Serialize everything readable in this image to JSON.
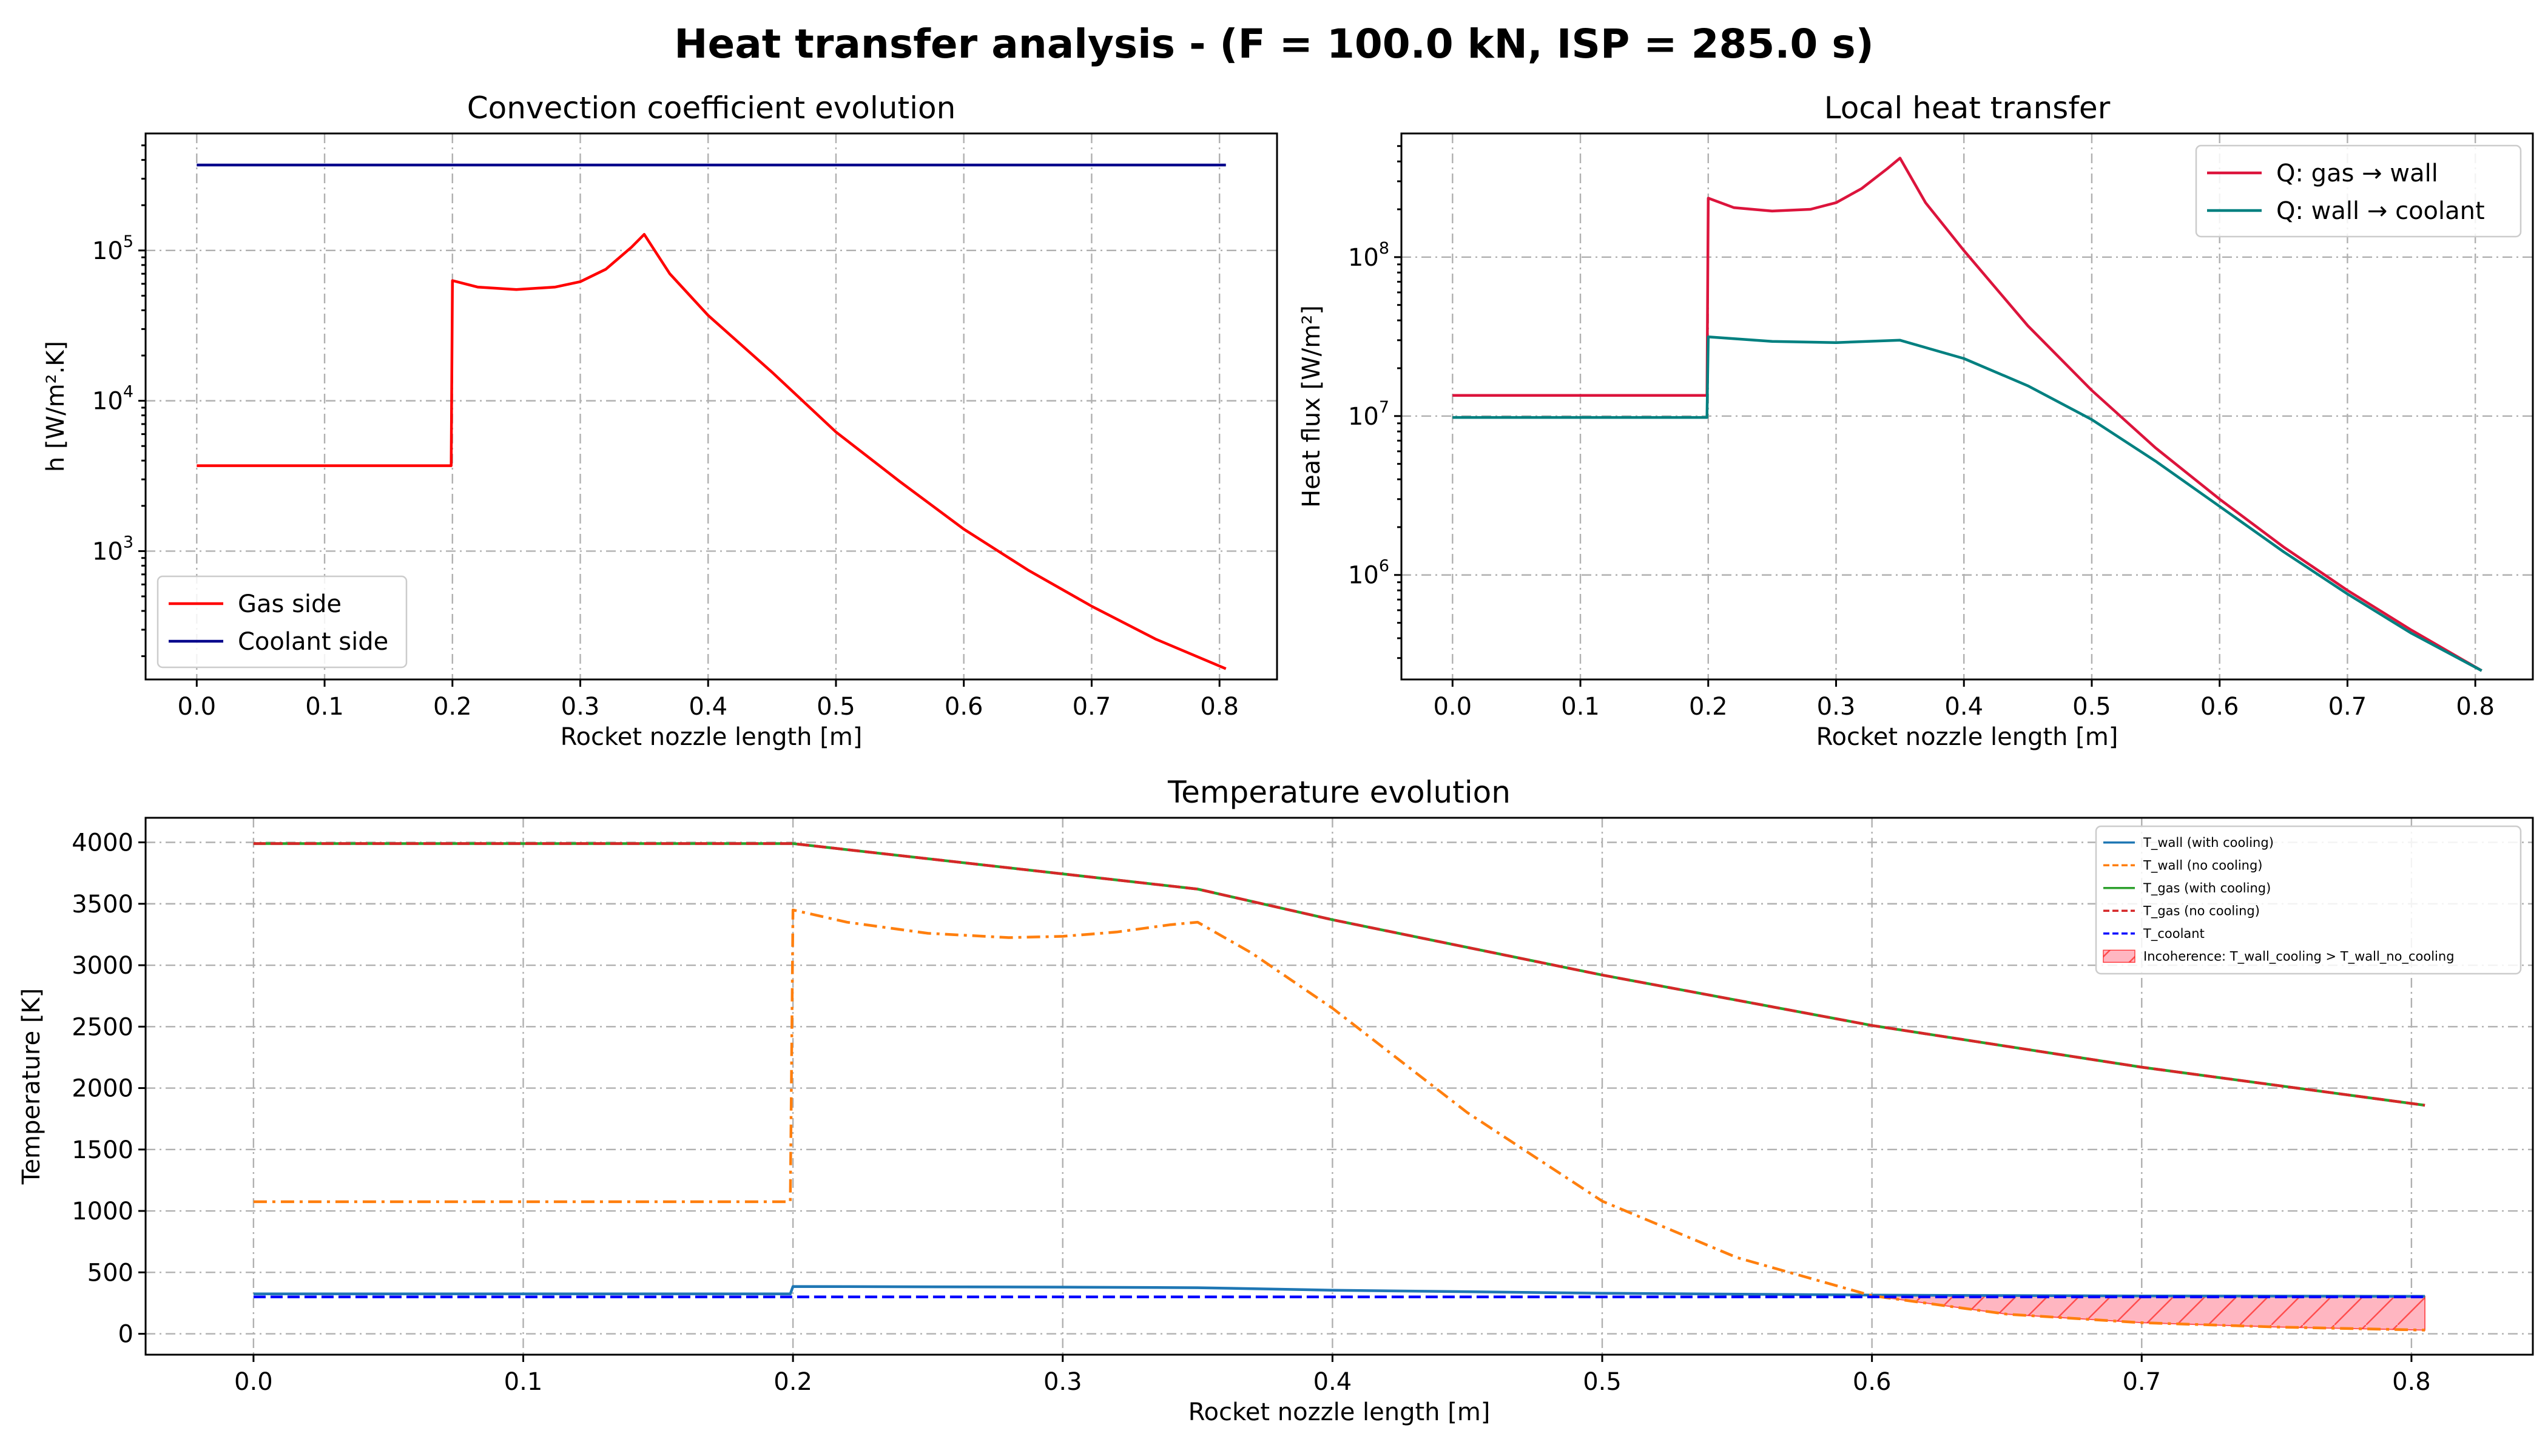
{
  "figure": {
    "suptitle": "Heat transfer analysis - (F = 100.0 kN, ISP = 285.0 s)"
  },
  "chart_data": [
    {
      "id": "convection",
      "type": "line",
      "title": "Convection coefficient evolution",
      "xlabel": "Rocket nozzle length [m]",
      "ylabel": "h [W/m².K]",
      "yscale": "log",
      "xlim": [
        -0.04,
        0.845
      ],
      "ylim": [
        140,
        600000
      ],
      "xticks": [
        0.0,
        0.1,
        0.2,
        0.3,
        0.4,
        0.5,
        0.6,
        0.7,
        0.8
      ],
      "xtick_labels": [
        "0.0",
        "0.1",
        "0.2",
        "0.3",
        "0.4",
        "0.5",
        "0.6",
        "0.7",
        "0.8"
      ],
      "yticks": [
        1000,
        10000,
        100000
      ],
      "ytick_labels": [
        [
          "10",
          "3"
        ],
        [
          "10",
          "4"
        ],
        [
          "10",
          "5"
        ]
      ],
      "grid": true,
      "legend": "lower-left",
      "series": [
        {
          "name": "Gas side",
          "color": "#ff0000",
          "dash": "solid",
          "x": [
            0.0,
            0.199,
            0.2,
            0.22,
            0.25,
            0.28,
            0.3,
            0.32,
            0.34,
            0.35,
            0.37,
            0.4,
            0.45,
            0.5,
            0.55,
            0.6,
            0.65,
            0.7,
            0.75,
            0.805
          ],
          "y": [
            3700,
            3700,
            63000,
            57000,
            55000,
            57000,
            62000,
            75000,
            105000,
            128000,
            70000,
            37000,
            15500,
            6200,
            2900,
            1400,
            750,
            430,
            260,
            165
          ]
        },
        {
          "name": "Coolant side",
          "color": "#00008b",
          "dash": "solid",
          "x": [
            0.0,
            0.805
          ],
          "y": [
            370000,
            370000
          ]
        }
      ]
    },
    {
      "id": "heat-flux",
      "type": "line",
      "title": "Local heat transfer",
      "xlabel": "Rocket nozzle length [m]",
      "ylabel": "Heat flux [W/m²]",
      "yscale": "log",
      "xlim": [
        -0.04,
        0.845
      ],
      "ylim": [
        220000,
        600000000
      ],
      "xticks": [
        0.0,
        0.1,
        0.2,
        0.3,
        0.4,
        0.5,
        0.6,
        0.7,
        0.8
      ],
      "xtick_labels": [
        "0.0",
        "0.1",
        "0.2",
        "0.3",
        "0.4",
        "0.5",
        "0.6",
        "0.7",
        "0.8"
      ],
      "yticks": [
        1000000,
        10000000,
        100000000
      ],
      "ytick_labels": [
        [
          "10",
          "6"
        ],
        [
          "10",
          "7"
        ],
        [
          "10",
          "8"
        ]
      ],
      "grid": true,
      "legend": "top-right",
      "series": [
        {
          "name": "Q: gas → wall",
          "color": "#dc143c",
          "dash": "solid",
          "x": [
            0.0,
            0.199,
            0.2,
            0.22,
            0.25,
            0.28,
            0.3,
            0.32,
            0.34,
            0.35,
            0.37,
            0.4,
            0.45,
            0.5,
            0.55,
            0.6,
            0.65,
            0.7,
            0.75,
            0.805
          ],
          "y": [
            13500000,
            13500000,
            235000000,
            205000000,
            195000000,
            200000000,
            220000000,
            270000000,
            360000000,
            420000000,
            220000000,
            110000000,
            37000000,
            14500000,
            6300000,
            3000000,
            1500000,
            800000,
            450000,
            250000
          ]
        },
        {
          "name": "Q: wall → coolant",
          "color": "#008080",
          "dash": "solid",
          "x": [
            0.0,
            0.199,
            0.2,
            0.25,
            0.3,
            0.35,
            0.4,
            0.45,
            0.5,
            0.55,
            0.6,
            0.65,
            0.7,
            0.75,
            0.805
          ],
          "y": [
            9800000,
            9800000,
            31500000,
            29500000,
            29000000,
            30000000,
            23000000,
            15500000,
            9500000,
            5200000,
            2700000,
            1400000,
            760000,
            430000,
            250000
          ]
        }
      ]
    },
    {
      "id": "temperature",
      "type": "line",
      "title": "Temperature evolution",
      "xlabel": "Rocket nozzle length [m]",
      "ylabel": "Temperature [K]",
      "yscale": "linear",
      "xlim": [
        -0.04,
        0.845
      ],
      "ylim": [
        -170,
        4200
      ],
      "xticks": [
        0.0,
        0.1,
        0.2,
        0.3,
        0.4,
        0.5,
        0.6,
        0.7,
        0.8
      ],
      "xtick_labels": [
        "0.0",
        "0.1",
        "0.2",
        "0.3",
        "0.4",
        "0.5",
        "0.6",
        "0.7",
        "0.8"
      ],
      "yticks": [
        0,
        500,
        1000,
        1500,
        2000,
        2500,
        3000,
        3500,
        4000
      ],
      "ytick_labels": [
        "0",
        "500",
        "1000",
        "1500",
        "2000",
        "2500",
        "3000",
        "3500",
        "4000"
      ],
      "grid": true,
      "legend": "top-right",
      "series": [
        {
          "name": "T_wall (with cooling)",
          "color": "#1f77b4",
          "dash": "solid",
          "x": [
            0.0,
            0.199,
            0.2,
            0.3,
            0.35,
            0.4,
            0.5,
            0.6,
            0.7,
            0.805
          ],
          "y": [
            325,
            325,
            385,
            380,
            375,
            355,
            330,
            315,
            308,
            305
          ]
        },
        {
          "name": "T_wall (no cooling)",
          "color": "#ff7f0e",
          "dash": "dashdot",
          "x": [
            0.0,
            0.199,
            0.2,
            0.22,
            0.25,
            0.28,
            0.3,
            0.32,
            0.34,
            0.35,
            0.37,
            0.4,
            0.45,
            0.5,
            0.55,
            0.6,
            0.65,
            0.7,
            0.75,
            0.805
          ],
          "y": [
            1075,
            1075,
            3450,
            3350,
            3260,
            3225,
            3235,
            3270,
            3330,
            3350,
            3100,
            2650,
            1800,
            1080,
            620,
            310,
            160,
            90,
            55,
            30
          ]
        },
        {
          "name": "T_gas (with cooling)",
          "color": "#2ca02c",
          "dash": "solid",
          "x": [
            0.0,
            0.2,
            0.35,
            0.4,
            0.5,
            0.6,
            0.7,
            0.805
          ],
          "y": [
            3990,
            3990,
            3620,
            3370,
            2920,
            2510,
            2170,
            1860
          ]
        },
        {
          "name": "T_gas (no cooling)",
          "color": "#d62728",
          "dash": "dashed",
          "x": [
            0.0,
            0.2,
            0.35,
            0.4,
            0.5,
            0.6,
            0.7,
            0.805
          ],
          "y": [
            3990,
            3990,
            3620,
            3370,
            2920,
            2510,
            2170,
            1860
          ]
        },
        {
          "name": "T_coolant",
          "color": "#0000ff",
          "dash": "dashed",
          "x": [
            0.0,
            0.805
          ],
          "y": [
            300,
            300
          ]
        }
      ],
      "fill": {
        "name": "Incoherence: T_wall_cooling > T_wall_no_cooling",
        "color": "#ff9999",
        "edge": "#ff0000",
        "hatch": "//",
        "x": [
          0.6,
          0.65,
          0.7,
          0.75,
          0.805
        ],
        "upper": [
          315,
          310,
          308,
          306,
          305
        ],
        "lower": [
          310,
          160,
          90,
          55,
          30
        ]
      }
    }
  ]
}
